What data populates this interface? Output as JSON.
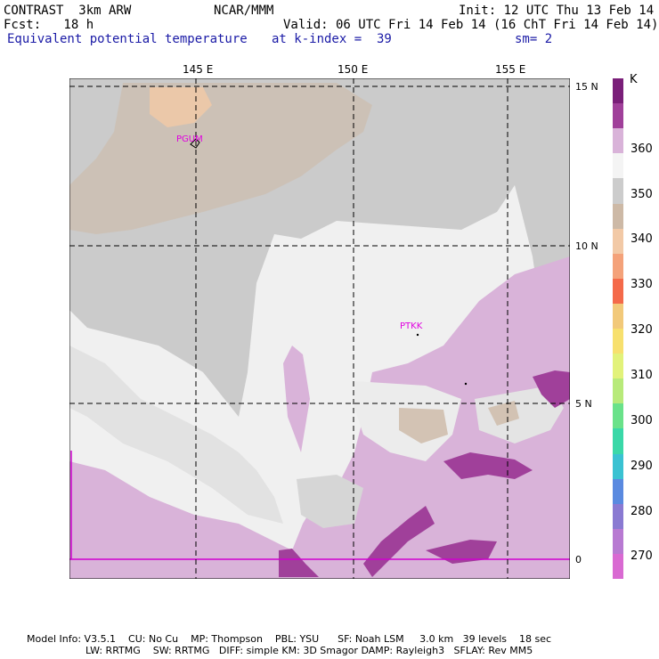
{
  "header": {
    "model": "CONTRAST  3km ARW",
    "center": "NCAR/MMM",
    "init": "Init: 12 UTC Thu 13 Feb 14",
    "fcst": "Fcst:   18 h",
    "valid": "Valid: 06 UTC Fri 14 Feb 14 (16 ChT Fri 14 Feb 14)",
    "field": "Equivalent potential temperature",
    "level": "at k-index =  39",
    "smooth": "sm= 2"
  },
  "map": {
    "lon_labels": [
      "145 E",
      "150 E",
      "155 E"
    ],
    "lat_labels": [
      "15 N",
      "10 N",
      "5 N",
      "0"
    ],
    "stations": [
      "PGUM",
      "PTKK"
    ]
  },
  "colorbar": {
    "unit": "K",
    "labels": [
      "360",
      "350",
      "340",
      "330",
      "320",
      "310",
      "300",
      "290",
      "280",
      "270"
    ],
    "colors": [
      "#7a1f79",
      "#a0409a",
      "#d9b3d9",
      "#f4f4f4",
      "#cccccc",
      "#cdb9a6",
      "#f2c9a6",
      "#f4a27a",
      "#f46a4a",
      "#f2c97a",
      "#f7e06e",
      "#e2f27a",
      "#b8ea7a",
      "#6ae28a",
      "#3ad8a8",
      "#3ac2d2",
      "#5a8ae0",
      "#8a7ad2",
      "#b87ad2",
      "#d96ad2"
    ]
  },
  "footer": {
    "line1": "Model Info: V3.5.1    CU: No Cu    MP: Thompson    PBL: YSU      SF: Noah LSM     3.0 km   39 levels    18 sec",
    "line2": "LW: RRTMG    SW: RRTMG   DIFF: simple KM: 3D Smagor DAMP: Rayleigh3   SFLAY: Rev MM5"
  }
}
